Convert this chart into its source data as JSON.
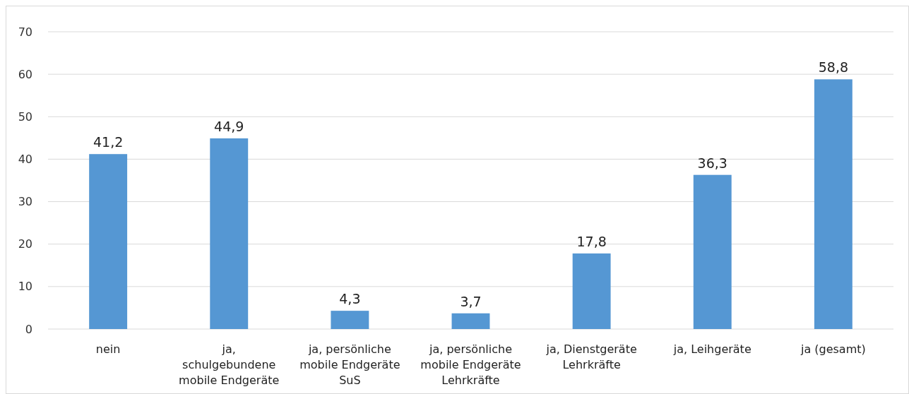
{
  "chart_data": {
    "type": "bar",
    "categories": [
      "nein",
      "ja, schulgebundene mobile Endgeräte",
      "ja, persönliche mobile Endgeräte SuS",
      "ja, persönliche mobile Endgeräte Lehrkräfte",
      "ja, Dienstgeräte Lehrkräfte",
      "ja, Leihgeräte",
      "ja (gesamt)"
    ],
    "values": [
      41.2,
      44.9,
      4.3,
      3.7,
      17.8,
      36.3,
      58.8
    ],
    "color": "#5597d3",
    "ylim": [
      0,
      70
    ],
    "yticks": [
      0,
      10,
      20,
      30,
      40,
      50,
      60,
      70
    ],
    "value_labels": [
      "41,2",
      "44,9",
      "4,3",
      "3,7",
      "17,8",
      "36,3",
      "58,8"
    ],
    "grid": "y"
  }
}
